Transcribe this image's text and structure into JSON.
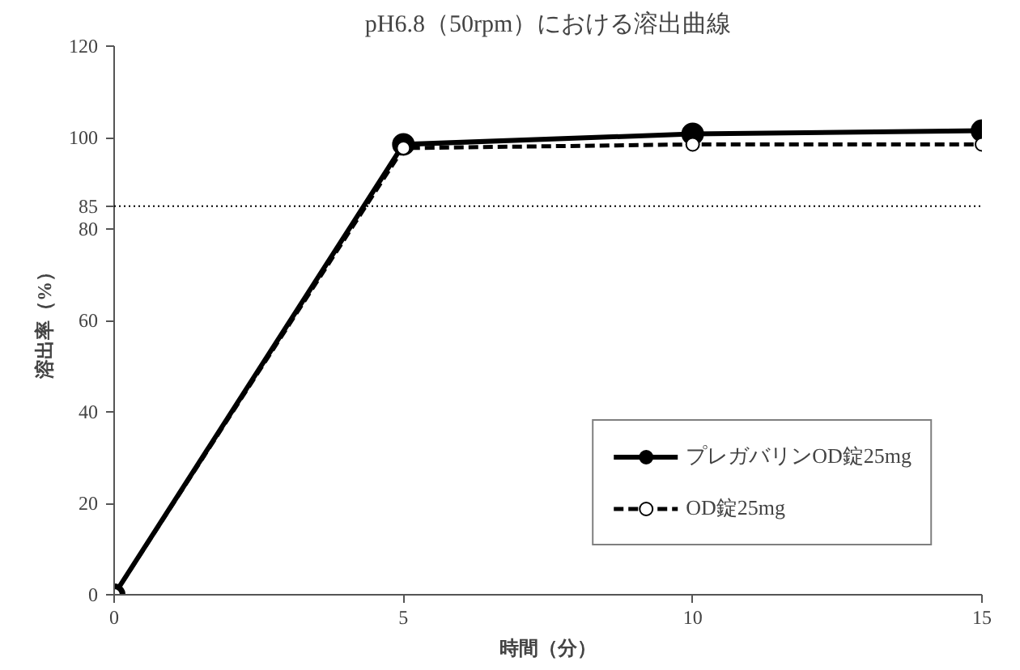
{
  "chart_data": {
    "type": "line",
    "title": "pH6.8（50rpm）における溶出曲線",
    "xlabel": "時間（分）",
    "ylabel": "溶出率（%）",
    "x": [
      0,
      5,
      10,
      15
    ],
    "series": [
      {
        "name": "プレガバリンOD錠25mg",
        "color": "#000000",
        "values": [
          0,
          98.5,
          100.8,
          101.5
        ],
        "marker": "circle",
        "line_style": "solid"
      },
      {
        "name": "OD錠25mg",
        "color": "#000000",
        "values": [
          0,
          97.7,
          98.5,
          98.5
        ],
        "marker": "circle",
        "line_style": "dashed"
      }
    ],
    "xlim": [
      0,
      15
    ],
    "xticks": [
      0,
      5,
      10,
      15
    ],
    "ylim": [
      0,
      120
    ],
    "yticks": [
      0,
      20,
      40,
      60,
      80,
      85,
      100,
      120
    ],
    "ref_lines": [
      {
        "axis": "y",
        "value": 85,
        "line_style": "dotted",
        "color": "#000000"
      }
    ],
    "grid": false,
    "legend": "bottom right"
  }
}
